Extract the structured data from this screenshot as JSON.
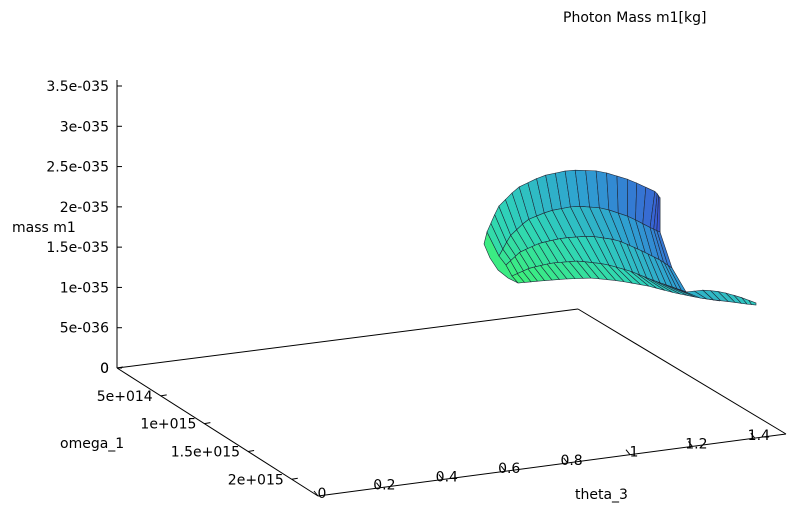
{
  "chart_data": {
    "type": "surface3d",
    "title": "Photon Mass m1[kg]",
    "xlabel": "theta_3",
    "ylabel": "omega_1",
    "zlabel": "mass m1",
    "x_ticks": [
      "0",
      "0.2",
      "0.4",
      "0.6",
      "0.8",
      "1",
      "1.2",
      "1.4"
    ],
    "y_ticks": [
      "0",
      "5e+014",
      "1e+015",
      "1.5e+015",
      "2e+015"
    ],
    "z_ticks": [
      "0",
      "5e-036",
      "1e-035",
      "1.5e-035",
      "2e-035",
      "2.5e-035",
      "3e-035",
      "3.5e-035"
    ],
    "xlim": [
      0,
      1.5
    ],
    "ylim": [
      0,
      2300000000000000.0
    ],
    "zlim": [
      0,
      3.5e-35
    ],
    "colormap": [
      "#3df07a",
      "#2fd4b8",
      "#2f9fd2",
      "#3a56d4"
    ],
    "surface_outline": {
      "upper_edge": [
        {
          "theta_3": 0.68,
          "mass_m1": 1.45e-35
        },
        {
          "theta_3": 0.74,
          "mass_m1": 1.85e-35
        },
        {
          "theta_3": 0.82,
          "mass_m1": 2.1e-35
        },
        {
          "theta_3": 0.92,
          "mass_m1": 2.2e-35
        },
        {
          "theta_3": 1.02,
          "mass_m1": 2.2e-35
        },
        {
          "theta_3": 1.1,
          "mass_m1": 2.1e-35
        }
      ],
      "tail_edge": [
        {
          "theta_3": 1.1,
          "mass_m1": 1.05e-35
        },
        {
          "theta_3": 1.2,
          "mass_m1": 9.5e-36
        },
        {
          "theta_3": 1.3,
          "mass_m1": 8.5e-36
        },
        {
          "theta_3": 1.4,
          "mass_m1": 7.2e-36
        },
        {
          "theta_3": 1.5,
          "mass_m1": 6.2e-36
        }
      ]
    }
  }
}
